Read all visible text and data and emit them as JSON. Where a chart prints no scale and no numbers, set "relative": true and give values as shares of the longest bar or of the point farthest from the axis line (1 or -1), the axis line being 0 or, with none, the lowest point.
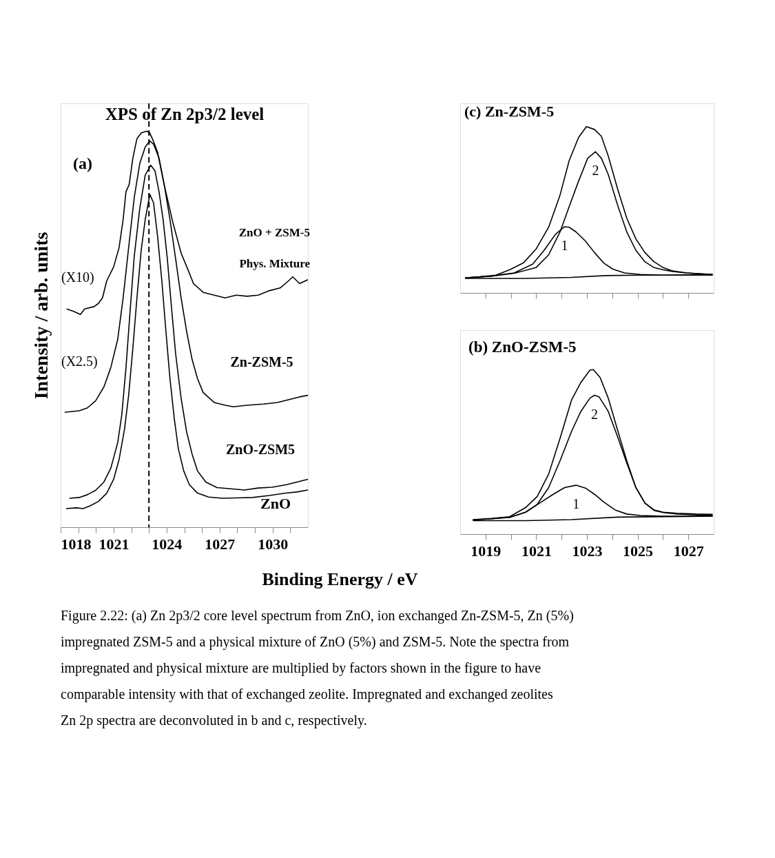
{
  "chart_data": [
    {
      "type": "line",
      "title": "XPS of Zn 2p3/2 level",
      "ylabel": "Intensity / arb. units",
      "xlabel": "Binding Energy / eV",
      "relative": true,
      "xlim": [
        1018,
        1032
      ],
      "xticks": [
        1018,
        {
          "value": 1019,
          "label": null
        },
        {
          "value": 1020,
          "label": null
        },
        1021,
        {
          "value": 1022,
          "label": null
        },
        {
          "value": 1023,
          "label": null
        },
        1024,
        {
          "value": 1025,
          "label": null
        },
        {
          "value": 1026,
          "label": null
        },
        1027,
        {
          "value": 1028,
          "label": null
        },
        {
          "value": 1029,
          "label": null
        },
        1030,
        {
          "value": 1031,
          "label": null
        }
      ],
      "tick_labels": "x",
      "ref_lines": [
        {
          "axis": "x",
          "value": 1023,
          "line_style": "dashed"
        }
      ],
      "annotations": [
        "(a)",
        "ZnO + ZSM-5",
        "Phys. Mixture",
        "(X10)",
        "(X2.5)",
        "Zn-ZSM-5",
        "ZnO-ZSM5",
        "ZnO",
        "Figure 2.22: (a) Zn 2p3/2 core level spectrum from ZnO, ion exchanged Zn-ZSM-5, Zn (5%) impregnated ZSM-5 and a physical mixture of ZnO (5%) and ZSM-5. Note the spectra from impregnated and physical mixture are multiplied by factors shown in the figure to have comparable intensity with that of exchanged zeolite. Impregnated and exchanged zeolites Zn 2p spectra are deconvoluted in b and c, respectively."
      ],
      "series": [
        {
          "color": "#000000",
          "x": [
            1018.34,
            1018.73,
            1019.12,
            1019.36,
            1019.9,
            1020.14,
            1020.37,
            1020.61,
            1021.0,
            1021.31,
            1021.54,
            1021.7,
            1021.88,
            1022.09,
            1022.32,
            1022.56,
            1022.87,
            1023.05,
            1023.26,
            1023.49,
            1023.88,
            1024.35,
            1024.82,
            1025.21,
            1025.52,
            1026.07,
            1026.69,
            1027.31,
            1027.94,
            1028.56,
            1029.19,
            1029.81,
            1030.43,
            1030.9,
            1031.14,
            1031.53,
            1032.0
          ],
          "values": [
            0.551,
            0.545,
            0.537,
            0.551,
            0.557,
            0.565,
            0.579,
            0.622,
            0.657,
            0.706,
            0.777,
            0.847,
            0.865,
            0.932,
            0.981,
            0.995,
            1.0,
            0.995,
            0.974,
            0.946,
            0.861,
            0.77,
            0.692,
            0.65,
            0.615,
            0.593,
            0.586,
            0.579,
            0.586,
            0.583,
            0.586,
            0.597,
            0.604,
            0.622,
            0.632,
            0.615,
            0.625
          ]
        },
        {
          "color": "#000000",
          "x": [
            1018.23,
            1019.05,
            1019.51,
            1019.98,
            1020.45,
            1020.84,
            1021.23,
            1021.54,
            1021.85,
            1022.17,
            1022.48,
            1022.79,
            1023.05,
            1023.26,
            1023.57,
            1023.88,
            1024.19,
            1024.51,
            1024.82,
            1025.13,
            1025.44,
            1025.75,
            1026.07,
            1026.69,
            1027.31,
            1027.78,
            1028.56,
            1029.5,
            1030.28,
            1030.9,
            1031.53,
            1032.0
          ],
          "values": [
            0.29,
            0.294,
            0.301,
            0.319,
            0.354,
            0.403,
            0.474,
            0.579,
            0.706,
            0.833,
            0.918,
            0.96,
            0.975,
            0.967,
            0.932,
            0.861,
            0.777,
            0.678,
            0.579,
            0.495,
            0.424,
            0.375,
            0.34,
            0.315,
            0.308,
            0.304,
            0.308,
            0.311,
            0.315,
            0.322,
            0.329,
            0.333
          ]
        },
        {
          "color": "#000000",
          "x": [
            1018.5,
            1019.05,
            1019.51,
            1019.98,
            1020.45,
            1020.84,
            1021.23,
            1021.46,
            1021.7,
            1021.93,
            1022.17,
            1022.48,
            1022.79,
            1023.1,
            1023.34,
            1023.57,
            1023.8,
            1024.04,
            1024.27,
            1024.51,
            1024.82,
            1025.13,
            1025.44,
            1025.75,
            1026.22,
            1026.85,
            1027.63,
            1028.41,
            1029.19,
            1029.97,
            1030.75,
            1031.37,
            1032.0
          ],
          "values": [
            0.073,
            0.075,
            0.082,
            0.093,
            0.114,
            0.149,
            0.213,
            0.283,
            0.403,
            0.544,
            0.685,
            0.805,
            0.889,
            0.914,
            0.9,
            0.847,
            0.777,
            0.678,
            0.558,
            0.438,
            0.326,
            0.241,
            0.185,
            0.142,
            0.114,
            0.1,
            0.097,
            0.094,
            0.099,
            0.101,
            0.107,
            0.114,
            0.121
          ]
        },
        {
          "color": "#000000",
          "x": [
            1018.31,
            1018.89,
            1019.28,
            1019.67,
            1020.14,
            1020.61,
            1021.0,
            1021.31,
            1021.62,
            1021.85,
            1022.09,
            1022.32,
            1022.56,
            1022.79,
            1023.05,
            1023.26,
            1023.49,
            1023.73,
            1023.96,
            1024.19,
            1024.43,
            1024.66,
            1024.97,
            1025.29,
            1025.75,
            1026.38,
            1027.16,
            1027.94,
            1028.87,
            1029.81,
            1030.75,
            1031.37,
            1032.0
          ],
          "values": [
            0.047,
            0.049,
            0.047,
            0.054,
            0.065,
            0.086,
            0.121,
            0.171,
            0.248,
            0.333,
            0.452,
            0.579,
            0.699,
            0.777,
            0.84,
            0.819,
            0.734,
            0.622,
            0.495,
            0.375,
            0.276,
            0.199,
            0.142,
            0.107,
            0.086,
            0.076,
            0.073,
            0.074,
            0.075,
            0.08,
            0.086,
            0.089,
            0.094
          ]
        }
      ]
    },
    {
      "type": "line",
      "title": "(c) Zn-ZSM-5",
      "relative": true,
      "xlim": [
        1018,
        1028
      ],
      "xticks": [
        1019,
        {
          "value": 1020,
          "label": null
        },
        1021,
        {
          "value": 1022,
          "label": null
        },
        1023,
        {
          "value": 1024,
          "label": null
        },
        1025,
        {
          "value": 1026,
          "label": null
        },
        1027
      ],
      "tick_labels": false,
      "series": [
        {
          "color": "#000000",
          "x": [
            1018.19,
            1018.77,
            1019.41,
            1019.95,
            1020.49,
            1020.99,
            1021.49,
            1021.94,
            1022.3,
            1022.67,
            1022.98,
            1023.3,
            1023.57,
            1023.84,
            1024.2,
            1024.57,
            1024.93,
            1025.29,
            1025.65,
            1026.01,
            1026.38,
            1026.92,
            1027.46,
            1027.96
          ],
          "values": [
            0.09,
            0.097,
            0.107,
            0.139,
            0.18,
            0.263,
            0.395,
            0.589,
            0.796,
            0.935,
            1.0,
            0.983,
            0.942,
            0.824,
            0.63,
            0.45,
            0.325,
            0.242,
            0.187,
            0.152,
            0.132,
            0.12,
            0.115,
            0.111
          ]
        },
        {
          "name": "2",
          "color": "#000000",
          "x": [
            1018.19,
            1019.23,
            1020.13,
            1020.99,
            1021.49,
            1021.94,
            1022.3,
            1022.67,
            1023.03,
            1023.34,
            1023.57,
            1023.84,
            1024.2,
            1024.57,
            1024.93,
            1025.29,
            1025.65,
            1026.01,
            1026.38,
            1026.92,
            1027.46,
            1027.96
          ],
          "values": [
            0.09,
            0.101,
            0.118,
            0.152,
            0.229,
            0.367,
            0.519,
            0.672,
            0.81,
            0.849,
            0.81,
            0.713,
            0.533,
            0.367,
            0.256,
            0.187,
            0.152,
            0.139,
            0.129,
            0.12,
            0.115,
            0.111
          ]
        },
        {
          "name": "1",
          "color": "#000000",
          "x": [
            1018.19,
            1019.23,
            1020.13,
            1020.86,
            1021.31,
            1021.76,
            1022.12,
            1022.3,
            1022.57,
            1022.94,
            1023.3,
            1023.66,
            1024.02,
            1024.48,
            1025.11,
            1026.01,
            1026.92,
            1027.96
          ],
          "values": [
            0.09,
            0.101,
            0.12,
            0.173,
            0.256,
            0.353,
            0.398,
            0.395,
            0.367,
            0.312,
            0.242,
            0.18,
            0.143,
            0.12,
            0.111,
            0.107,
            0.109,
            0.111
          ]
        },
        {
          "color": "#000000",
          "x": [
            1018.19,
            1020.58,
            1022.39,
            1023.75,
            1025.11,
            1027.96
          ],
          "values": [
            0.087,
            0.087,
            0.093,
            0.104,
            0.107,
            0.107
          ]
        }
      ]
    },
    {
      "type": "line",
      "title": "(b) ZnO-ZSM-5",
      "relative": true,
      "xlim": [
        1018,
        1028
      ],
      "xticks": [
        1019,
        {
          "value": 1020,
          "label": null
        },
        1021,
        {
          "value": 1022,
          "label": null
        },
        1023,
        {
          "value": 1024,
          "label": null
        },
        1025,
        {
          "value": 1026,
          "label": null
        },
        1027
      ],
      "tick_labels": "x",
      "series": [
        {
          "color": "#000000",
          "x": [
            1018.5,
            1019.23,
            1019.95,
            1020.58,
            1021.04,
            1021.49,
            1021.94,
            1022.39,
            1022.76,
            1023.12,
            1023.25,
            1023.52,
            1023.84,
            1024.2,
            1024.57,
            1024.93,
            1025.29,
            1025.65,
            1026.01,
            1026.56,
            1027.28,
            1027.96
          ],
          "values": [
            0.088,
            0.095,
            0.106,
            0.161,
            0.229,
            0.365,
            0.582,
            0.814,
            0.922,
            0.997,
            1.0,
            0.952,
            0.827,
            0.637,
            0.446,
            0.283,
            0.188,
            0.147,
            0.133,
            0.127,
            0.122,
            0.12
          ]
        },
        {
          "name": "2",
          "color": "#000000",
          "x": [
            1018.5,
            1019.23,
            1019.95,
            1020.58,
            1021.04,
            1021.49,
            1021.94,
            1022.39,
            1022.76,
            1023.12,
            1023.3,
            1023.48,
            1023.84,
            1024.2,
            1024.57,
            1024.93,
            1025.29,
            1025.65,
            1026.01,
            1026.56,
            1027.28,
            1027.96
          ],
          "values": [
            0.086,
            0.093,
            0.102,
            0.133,
            0.181,
            0.283,
            0.446,
            0.623,
            0.746,
            0.827,
            0.844,
            0.834,
            0.746,
            0.596,
            0.433,
            0.283,
            0.188,
            0.144,
            0.131,
            0.122,
            0.117,
            0.113
          ]
        },
        {
          "name": "1",
          "color": "#000000",
          "x": [
            1018.5,
            1019.23,
            1019.95,
            1020.58,
            1021.13,
            1021.67,
            1022.12,
            1022.57,
            1022.94,
            1023.3,
            1023.66,
            1024.11,
            1024.57,
            1025.11,
            1026.01,
            1026.92,
            1027.96
          ],
          "values": [
            0.086,
            0.093,
            0.102,
            0.133,
            0.188,
            0.242,
            0.283,
            0.297,
            0.28,
            0.242,
            0.195,
            0.147,
            0.122,
            0.113,
            0.109,
            0.109,
            0.11
          ]
        },
        {
          "color": "#000000",
          "x": [
            1018.5,
            1020.58,
            1022.39,
            1024.2,
            1027.96
          ],
          "values": [
            0.082,
            0.082,
            0.088,
            0.103,
            0.109
          ]
        }
      ]
    }
  ]
}
